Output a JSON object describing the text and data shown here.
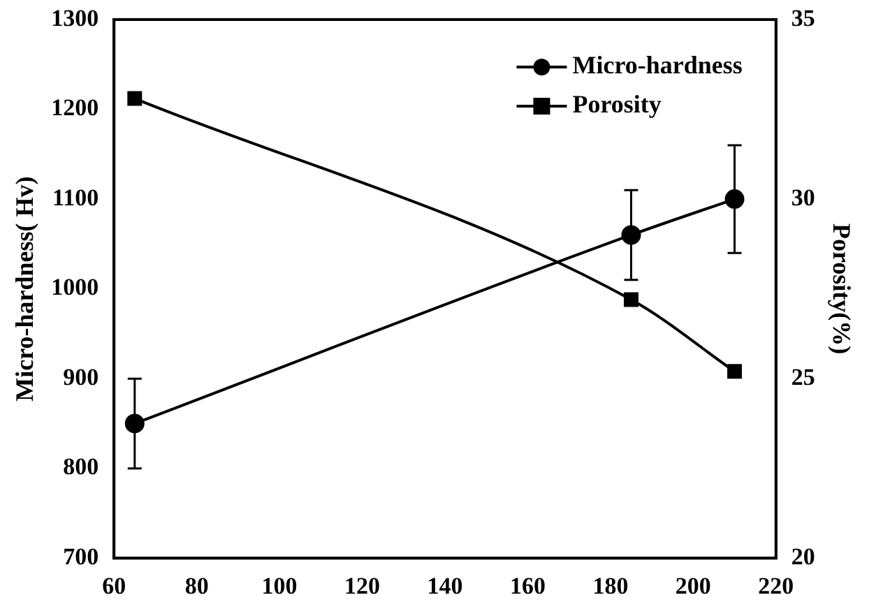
{
  "chart_data": {
    "type": "line",
    "ylabel": "Micro-hardness( Hv)",
    "y2label": "Porosity(%)",
    "xlim": [
      60,
      220
    ],
    "xticks": [
      60,
      80,
      100,
      120,
      140,
      160,
      180,
      200,
      220
    ],
    "ylim": [
      700,
      1300
    ],
    "yticks": [
      700,
      800,
      900,
      1000,
      1100,
      1200,
      1300
    ],
    "y2lim": [
      20,
      35
    ],
    "y2ticks": [
      20,
      25,
      30,
      35
    ],
    "grid": false,
    "legend": "top right",
    "line_style": "solid",
    "series": [
      {
        "name": "Micro-hardness",
        "color": "#000000",
        "x": [
          65,
          185,
          210
        ],
        "values": [
          850,
          1060,
          1100
        ],
        "errors": [
          50,
          50,
          60
        ],
        "marker": "circle"
      },
      {
        "name": "Porosity",
        "color": "#000000",
        "x": [
          65,
          185,
          210
        ],
        "values": [
          32.8,
          27.2,
          25.2
        ],
        "axis": "y2",
        "marker": "square"
      }
    ]
  }
}
